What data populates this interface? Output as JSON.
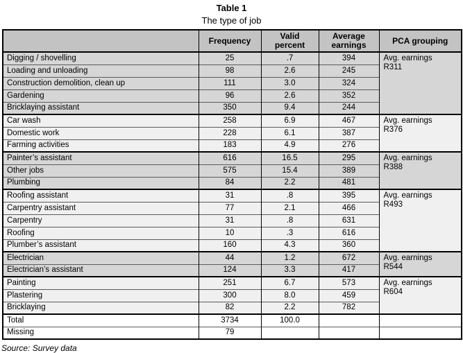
{
  "title": "Table 1",
  "subtitle": "The type of job",
  "source_note": "Source: Survey data",
  "colors": {
    "header_bg": "#c3c3c3",
    "group_gray_bg": "#d6d6d6",
    "group_light_bg": "#f0f0f0",
    "summary_bg": "#ffffff",
    "border": "#000000"
  },
  "table": {
    "columns": [
      "",
      "Frequency",
      "Valid\npercent",
      "Average\nearnings",
      "PCA grouping"
    ],
    "groups": [
      {
        "pca_label": "Avg. earnings",
        "pca_value": "R311",
        "shade": "gray",
        "rows": [
          {
            "job": "Digging / shovelling",
            "frequency": "25",
            "valid_percent": ".7",
            "average_earnings": "394"
          },
          {
            "job": "Loading and unloading",
            "frequency": "98",
            "valid_percent": "2.6",
            "average_earnings": "245"
          },
          {
            "job": "Construction demolition, clean up",
            "frequency": "111",
            "valid_percent": "3.0",
            "average_earnings": "324"
          },
          {
            "job": "Gardening",
            "frequency": "96",
            "valid_percent": "2.6",
            "average_earnings": "352"
          },
          {
            "job": "Bricklaying assistant",
            "frequency": "350",
            "valid_percent": "9.4",
            "average_earnings": "244"
          }
        ]
      },
      {
        "pca_label": "Avg. earnings",
        "pca_value": "R376",
        "shade": "light",
        "rows": [
          {
            "job": "Car wash",
            "frequency": "258",
            "valid_percent": "6.9",
            "average_earnings": "467"
          },
          {
            "job": "Domestic work",
            "frequency": "228",
            "valid_percent": "6.1",
            "average_earnings": "387"
          },
          {
            "job": "Farming activities",
            "frequency": "183",
            "valid_percent": "4.9",
            "average_earnings": "276"
          }
        ]
      },
      {
        "pca_label": "Avg. earnings",
        "pca_value": "R388",
        "shade": "gray",
        "rows": [
          {
            "job": "Painter’s assistant",
            "frequency": "616",
            "valid_percent": "16.5",
            "average_earnings": "295"
          },
          {
            "job": "Other jobs",
            "frequency": "575",
            "valid_percent": "15.4",
            "average_earnings": "389"
          },
          {
            "job": "Plumbing",
            "frequency": "84",
            "valid_percent": "2.2",
            "average_earnings": "481"
          }
        ]
      },
      {
        "pca_label": "Avg. earnings",
        "pca_value": "R493",
        "shade": "light",
        "rows": [
          {
            "job": "Roofing assistant",
            "frequency": "31",
            "valid_percent": ".8",
            "average_earnings": "395"
          },
          {
            "job": "Carpentry assistant",
            "frequency": "77",
            "valid_percent": "2.1",
            "average_earnings": "466"
          },
          {
            "job": "Carpentry",
            "frequency": "31",
            "valid_percent": ".8",
            "average_earnings": "631"
          },
          {
            "job": "Roofing",
            "frequency": "10",
            "valid_percent": ".3",
            "average_earnings": "616"
          },
          {
            "job": "Plumber’s assistant",
            "frequency": "160",
            "valid_percent": "4.3",
            "average_earnings": "360"
          }
        ]
      },
      {
        "pca_label": "Avg. earnings",
        "pca_value": "R544",
        "shade": "gray",
        "rows": [
          {
            "job": "Electrician",
            "frequency": "44",
            "valid_percent": "1.2",
            "average_earnings": "672"
          },
          {
            "job": "Electrician’s assistant",
            "frequency": "124",
            "valid_percent": "3.3",
            "average_earnings": "417"
          }
        ]
      },
      {
        "pca_label": "Avg. earnings",
        "pca_value": "R604",
        "shade": "light",
        "rows": [
          {
            "job": "Painting",
            "frequency": "251",
            "valid_percent": "6.7",
            "average_earnings": "573"
          },
          {
            "job": "Plastering",
            "frequency": "300",
            "valid_percent": "8.0",
            "average_earnings": "459"
          },
          {
            "job": "Bricklaying",
            "frequency": "82",
            "valid_percent": "2.2",
            "average_earnings": "782"
          }
        ]
      }
    ],
    "summary_rows": [
      {
        "job": "Total",
        "frequency": "3734",
        "valid_percent": "100.0",
        "average_earnings": "",
        "pca": ""
      },
      {
        "job": "Missing",
        "frequency": "79",
        "valid_percent": "",
        "average_earnings": "",
        "pca": ""
      }
    ]
  }
}
